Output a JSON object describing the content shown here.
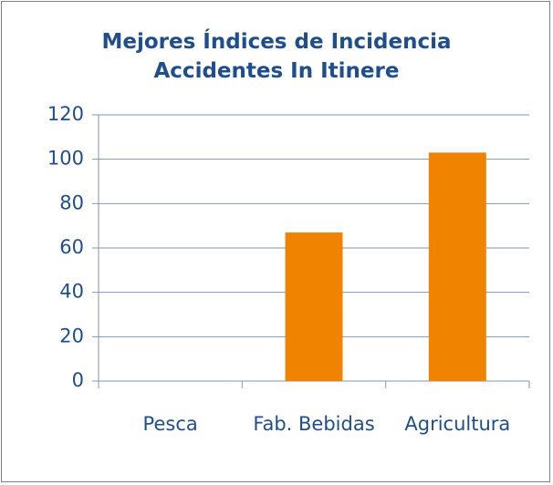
{
  "chart_data": {
    "type": "bar",
    "title": "Mejores Índices de Incidencia Accidentes In Itinere",
    "categories": [
      "Pesca",
      "Fab. Bebidas",
      "Agricultura"
    ],
    "values": [
      0,
      67,
      103
    ],
    "color": "#f08300",
    "ylim": [
      0,
      120
    ],
    "yticks": [
      0,
      20,
      40,
      60,
      80,
      100,
      120
    ],
    "grid": true
  }
}
